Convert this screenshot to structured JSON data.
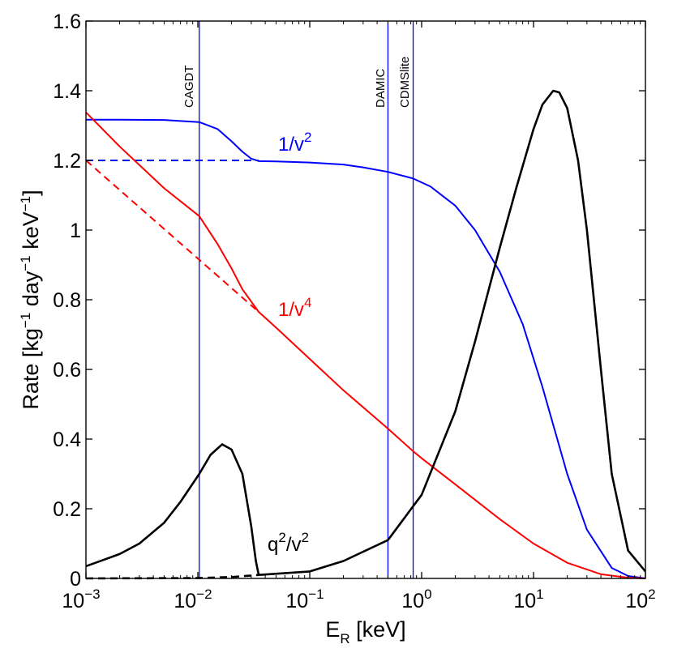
{
  "chart_data": {
    "type": "line",
    "title": "",
    "xlabel": {
      "base": "E",
      "sub": "R",
      "unit": " [keV]"
    },
    "ylabel": {
      "prefix": "Rate [kg",
      "e1": "−1",
      "mid1": " day",
      "e2": "−1",
      "mid2": " keV",
      "e3": "−1",
      "suffix": "]"
    },
    "xscale": "log",
    "xlim": [
      0.001,
      100
    ],
    "ylim": [
      0,
      1.6
    ],
    "x_ticks": [
      {
        "base": "10",
        "exp": "−3"
      },
      {
        "base": "10",
        "exp": "−2"
      },
      {
        "base": "10",
        "exp": "−1"
      },
      {
        "base": "10",
        "exp": "0"
      },
      {
        "base": "10",
        "exp": "1"
      },
      {
        "base": "10",
        "exp": "2"
      }
    ],
    "y_ticks": [
      "0",
      "0.2",
      "0.4",
      "0.6",
      "0.8",
      "1",
      "1.2",
      "1.4",
      "1.6"
    ],
    "vertical_lines": [
      {
        "label": "CAGDT",
        "x": 0.0103,
        "color": "#0000ff"
      },
      {
        "label": "DAMIC",
        "x": 0.5,
        "color": "#0000ff"
      },
      {
        "label": "CDMSlite",
        "x": 0.84,
        "color": "#0000ff"
      }
    ],
    "series": [
      {
        "name": "1/v2 solid",
        "color": "#0000ff",
        "dash": false,
        "x": [
          0.001,
          0.002,
          0.005,
          0.0103,
          0.015,
          0.02,
          0.025,
          0.03,
          0.035,
          0.05,
          0.1,
          0.2,
          0.3,
          0.5,
          0.84,
          1.2,
          2,
          3,
          5,
          8,
          12,
          20,
          30,
          50,
          70,
          100
        ],
        "y": [
          1.317,
          1.317,
          1.316,
          1.31,
          1.29,
          1.255,
          1.225,
          1.205,
          1.198,
          1.197,
          1.194,
          1.188,
          1.18,
          1.167,
          1.148,
          1.125,
          1.07,
          1.0,
          0.88,
          0.73,
          0.55,
          0.3,
          0.14,
          0.03,
          0.007,
          0.0
        ]
      },
      {
        "name": "1/v2 dashed",
        "color": "#0000ff",
        "dash": true,
        "x": [
          0.001,
          0.035
        ],
        "y": [
          1.2,
          1.2
        ]
      },
      {
        "name": "1/v4 solid",
        "color": "#ff0000",
        "dash": false,
        "x": [
          0.001,
          0.002,
          0.005,
          0.0103,
          0.015,
          0.02,
          0.025,
          0.035,
          0.05,
          0.1,
          0.2,
          0.5,
          0.84,
          1,
          2,
          5,
          10,
          20,
          40,
          70,
          100
        ],
        "y": [
          1.338,
          1.24,
          1.12,
          1.04,
          0.96,
          0.89,
          0.83,
          0.765,
          0.72,
          0.63,
          0.54,
          0.43,
          0.365,
          0.345,
          0.27,
          0.17,
          0.1,
          0.045,
          0.012,
          0.002,
          0.0
        ]
      },
      {
        "name": "1/v4 dashed",
        "color": "#ff0000",
        "dash": true,
        "x": [
          0.001,
          0.035
        ],
        "y": [
          1.2,
          0.765
        ]
      },
      {
        "name": "q2/v2 low-energy bump",
        "color": "#000000",
        "dash": false,
        "x": [
          0.001,
          0.002,
          0.003,
          0.005,
          0.007,
          0.0103,
          0.013,
          0.0165,
          0.02,
          0.025,
          0.03,
          0.033,
          0.035
        ],
        "y": [
          0.035,
          0.07,
          0.1,
          0.16,
          0.22,
          0.3,
          0.355,
          0.385,
          0.37,
          0.3,
          0.15,
          0.05,
          0.01
        ]
      },
      {
        "name": "q2/v2 main",
        "color": "#000000",
        "dash": false,
        "x": [
          0.035,
          0.1,
          0.2,
          0.5,
          1,
          2,
          3,
          5,
          7,
          10,
          12,
          15,
          17,
          20,
          25,
          30,
          40,
          50,
          70,
          100
        ],
        "y": [
          0.01,
          0.02,
          0.05,
          0.11,
          0.24,
          0.48,
          0.68,
          0.95,
          1.12,
          1.29,
          1.36,
          1.4,
          1.395,
          1.35,
          1.2,
          1.0,
          0.6,
          0.3,
          0.08,
          0.02
        ]
      },
      {
        "name": "q2/v2 dashed",
        "color": "#000000",
        "dash": true,
        "x": [
          0.001,
          0.01,
          0.02,
          0.035
        ],
        "y": [
          0.0,
          0.001,
          0.004,
          0.01
        ]
      }
    ],
    "curve_labels": [
      {
        "text": "1/v",
        "exp": "2",
        "color": "#0000ff"
      },
      {
        "text": "1/v",
        "exp": "4",
        "color": "#ff0000"
      },
      {
        "text": "q",
        "exp": "2",
        "text2": "/v",
        "exp2": "2",
        "color": "#000000"
      }
    ]
  }
}
